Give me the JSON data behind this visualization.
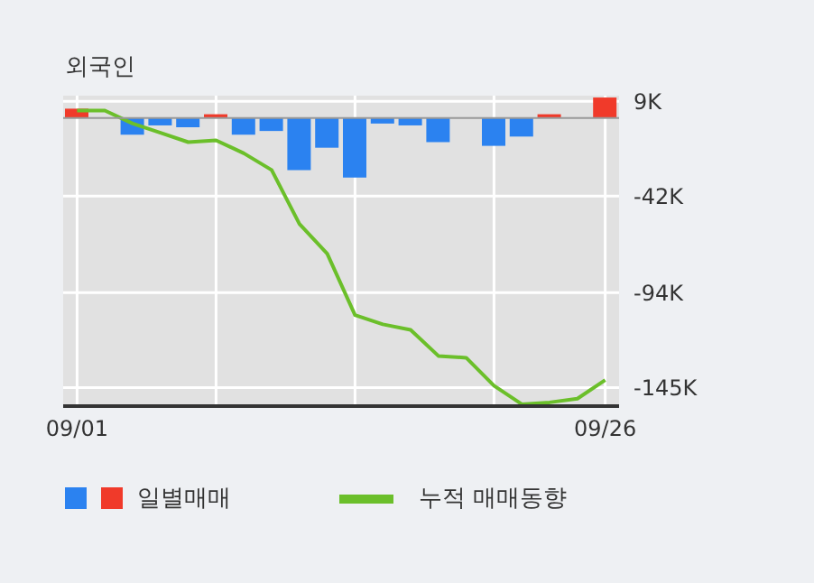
{
  "chart_data": {
    "type": "bar",
    "title": "외국인",
    "categories": [
      "09/01",
      null,
      null,
      null,
      null,
      null,
      null,
      null,
      null,
      null,
      null,
      null,
      null,
      null,
      null,
      null,
      null,
      null,
      null,
      "09/26"
    ],
    "series": [
      {
        "name": "일별매매",
        "colors": [
          "#f03a2a",
          "#f03a2a",
          "#2b82f0",
          "#2b82f0",
          "#2b82f0",
          "#f03a2a",
          "#2b82f0",
          "#2b82f0",
          "#2b82f0",
          "#2b82f0",
          "#2b82f0",
          "#2b82f0",
          "#2b82f0",
          "#2b82f0",
          "#2b82f0",
          "#2b82f0",
          "#2b82f0",
          "#f03a2a",
          "#f03a2a",
          "#f03a2a"
        ],
        "values": [
          5,
          0,
          -9,
          -4,
          -5,
          2,
          -9,
          -7,
          -28,
          -16,
          -32,
          -3,
          -4,
          -13,
          0,
          -15,
          -10,
          2,
          0,
          11
        ]
      },
      {
        "name": "누적 매매동향",
        "type": "line",
        "color": "#6bbf2a",
        "values": [
          4,
          4,
          -3,
          -8,
          -13,
          -12,
          -19,
          -28,
          -57,
          -73,
          -106,
          -111,
          -114,
          -128,
          -129,
          -144,
          -154,
          -153,
          -151,
          -141
        ]
      }
    ],
    "ylim": [
      -155,
      12
    ],
    "yticks": [
      {
        "value": 9,
        "label": "9K"
      },
      {
        "value": -42,
        "label": "-42K"
      },
      {
        "value": -94,
        "label": "-94K"
      },
      {
        "value": -145,
        "label": "-145K"
      }
    ],
    "ref_lines": [
      {
        "axis": "y",
        "value": 0,
        "color": "#999999"
      }
    ],
    "grid": true,
    "legend": "bottom",
    "marker": "none"
  }
}
